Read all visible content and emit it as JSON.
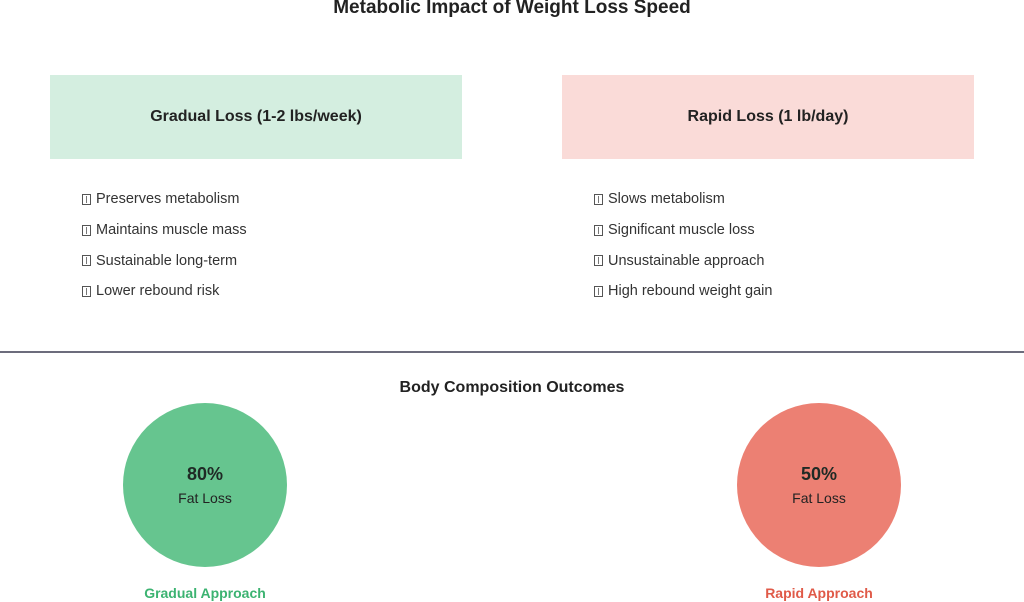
{
  "title": "Metabolic Impact of Weight Loss Speed",
  "gradual": {
    "heading": "Gradual Loss (1-2 lbs/week)",
    "items": [
      "Preserves metabolism",
      "Maintains muscle mass",
      "Sustainable long-term",
      "Lower rebound risk"
    ],
    "color": "#d4eee0"
  },
  "rapid": {
    "heading": "Rapid Loss (1 lb/day)",
    "items": [
      "Slows metabolism",
      "Significant muscle loss",
      "Unsustainable approach",
      "High rebound weight gain"
    ],
    "color": "#fadbd8"
  },
  "outcomes": {
    "title": "Body Composition Outcomes",
    "gradual": {
      "value": "80%",
      "label": "Fat Loss",
      "caption": "Gradual Approach",
      "color": "#66c58f",
      "caption_color": "#3cb371"
    },
    "rapid": {
      "value": "50%",
      "label": "Fat Loss",
      "caption": "Rapid Approach",
      "color": "#ec8073",
      "caption_color": "#e05a48"
    }
  },
  "icons": {
    "list_bullet": "missing-glyph-box"
  }
}
